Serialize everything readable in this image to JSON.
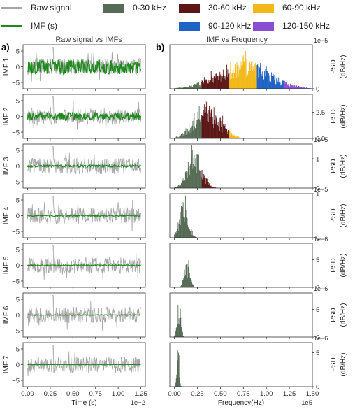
{
  "legend": [
    {
      "label": "Raw signal",
      "color": "#a6a6a6",
      "kind": "line"
    },
    {
      "label": "IMF (s)",
      "color": "#1e8a1e",
      "kind": "line"
    },
    {
      "label": "0-30 kHz",
      "color": "#556b55",
      "kind": "box"
    },
    {
      "label": "30-60 kHz",
      "color": "#5c1616",
      "kind": "box"
    },
    {
      "label": "60-90 kHz",
      "color": "#f2b818",
      "kind": "box"
    },
    {
      "label": "90-120 kHz",
      "color": "#1f63c4",
      "kind": "box"
    },
    {
      "label": "120-150 kHz",
      "color": "#8a4fd0",
      "kind": "box"
    }
  ],
  "panels": {
    "left_letter": "a)",
    "left_title": "Raw signal vs IMFs",
    "right_letter": "b)",
    "right_title": "IMF vs Frequency"
  },
  "chart_data": [
    {
      "type": "line",
      "title": "Raw signal vs IMFs",
      "xlabel": "Time (s)",
      "x_offset_text": "1e−2",
      "xlim": [
        -0.05,
        1.3
      ],
      "x_ticks": [
        "0.00",
        "0.25",
        "0.50",
        "0.75",
        "1.00",
        "1.25"
      ],
      "ylim": [
        -7,
        7
      ],
      "y_ticks": [
        "−5",
        "0",
        "5"
      ],
      "rows": [
        {
          "ylabel": "IMF 1",
          "imf_amplitude": 2.4
        },
        {
          "ylabel": "IMF 2",
          "imf_amplitude": 1.3
        },
        {
          "ylabel": "IMF 3",
          "imf_amplitude": 0.35
        },
        {
          "ylabel": "IMF 4",
          "imf_amplitude": 0.25
        },
        {
          "ylabel": "IMF 5",
          "imf_amplitude": 0.2
        },
        {
          "ylabel": "IMF 6",
          "imf_amplitude": 0.12
        },
        {
          "ylabel": "IMF 7",
          "imf_amplitude": 0.08
        }
      ],
      "series": [
        {
          "name": "Raw signal",
          "color": "#a6a6a6"
        },
        {
          "name": "IMF (s)",
          "color": "#1e8a1e"
        }
      ]
    },
    {
      "type": "area",
      "title": "IMF vs Frequency",
      "xlabel": "Frequency(Hz)",
      "x_offset_text": "1e5",
      "xlim": [
        -0.05,
        1.5
      ],
      "x_ticks": [
        "0.00",
        "0.25",
        "0.50",
        "0.75",
        "1.00",
        "1.25",
        "1.50"
      ],
      "ylabel": "PSD\n(dB/Hz)",
      "rows": [
        {
          "scale": "1e−5",
          "ylim": [
            0,
            1.0
          ],
          "y_ticks": [
            {
              "v": 0,
              "t": "0"
            }
          ],
          "peak_freq": 0.75,
          "width": 0.28,
          "peak": 0.62
        },
        {
          "scale": "",
          "ylim": [
            0,
            4.2
          ],
          "y_ticks": [
            {
              "v": 0,
              "t": "0.0"
            },
            {
              "v": 2.5,
              "t": "2.5"
            }
          ],
          "peak_freq": 0.36,
          "width": 0.14,
          "peak": 3.1
        },
        {
          "scale": "1e−5",
          "ylim": [
            0,
            1.5
          ],
          "y_ticks": [
            {
              "v": 0,
              "t": "0"
            },
            {
              "v": 1,
              "t": "1"
            }
          ],
          "peak_freq": 0.22,
          "width": 0.08,
          "peak": 1.25
        },
        {
          "scale": "1e−5",
          "ylim": [
            0,
            1.0
          ],
          "y_ticks": [
            {
              "v": 0,
              "t": "0"
            },
            {
              "v": 1,
              "t": "1"
            }
          ],
          "peak_freq": 0.1,
          "width": 0.05,
          "peak": 0.8
        },
        {
          "scale": "1e−6",
          "ylim": [
            0,
            8
          ],
          "y_ticks": [
            {
              "v": 0,
              "t": "0"
            },
            {
              "v": 5,
              "t": "5"
            }
          ],
          "peak_freq": 0.14,
          "width": 0.03,
          "peak": 5.2
        },
        {
          "scale": "1e−6",
          "ylim": [
            0,
            8
          ],
          "y_ticks": [
            {
              "v": 0,
              "t": "0"
            },
            {
              "v": 5,
              "t": "5"
            }
          ],
          "peak_freq": 0.05,
          "width": 0.02,
          "peak": 6.4
        },
        {
          "scale": "1e−6",
          "ylim": [
            0,
            6.5
          ],
          "y_ticks": [
            {
              "v": 0,
              "t": "0"
            },
            {
              "v": 5,
              "t": "5"
            }
          ],
          "peak_freq": 0.04,
          "width": 0.012,
          "peak": 6.0
        }
      ],
      "series": [
        {
          "name": "0-30 kHz",
          "color": "#556b55"
        },
        {
          "name": "30-60 kHz",
          "color": "#5c1616"
        },
        {
          "name": "60-90 kHz",
          "color": "#f2b818"
        },
        {
          "name": "90-120 kHz",
          "color": "#1f63c4"
        },
        {
          "name": "120-150 kHz",
          "color": "#8a4fd0"
        }
      ]
    }
  ]
}
